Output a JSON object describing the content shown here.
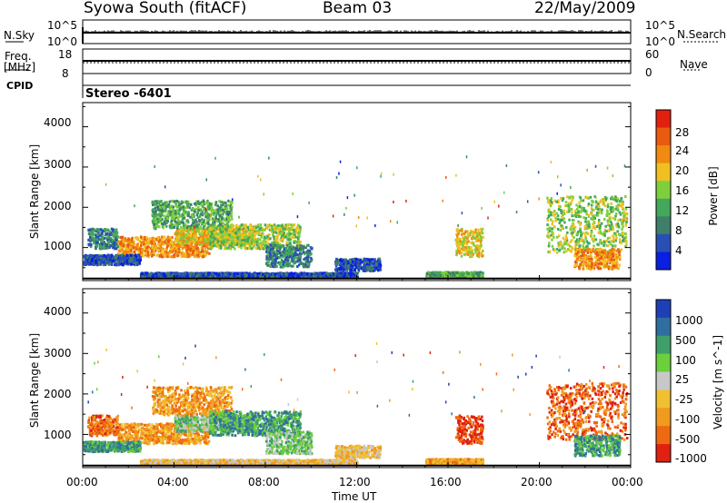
{
  "header": {
    "station": "Syowa South (fitACF)",
    "beam": "Beam 03",
    "date": "22/May/2009"
  },
  "strips": {
    "nsky": {
      "label": "N.Sky",
      "ticks": [
        "10^5",
        "10^0"
      ],
      "right_label": "N.Search",
      "right_ticks": [
        "10^5",
        "10^0"
      ]
    },
    "freq": {
      "label_top": "Freq.",
      "label_bottom": "[MHz]",
      "ticks": [
        "18",
        "8"
      ],
      "right_label": "Nave",
      "right_ticks": [
        "60",
        "0"
      ]
    },
    "cpid": {
      "label": "CPID",
      "value": "Stereo  -6401"
    }
  },
  "time_axis": {
    "label": "Time UT",
    "ticks": [
      "00:00",
      "04:00",
      "08:00",
      "12:00",
      "16:00",
      "20:00",
      "00:00"
    ]
  },
  "chart_data": [
    {
      "type": "heatmap",
      "name": "power",
      "ylabel": "Slant Range [km]",
      "ylim": [
        180,
        4600
      ],
      "xlim_hours": [
        0,
        24
      ],
      "yticks": [
        "1000",
        "2000",
        "3000",
        "4000"
      ],
      "colorbar": {
        "label": "Power [dB]",
        "ticks": [
          "4",
          "8",
          "12",
          "16",
          "20",
          "24",
          "28"
        ],
        "colors": [
          "#0b1fe0",
          "#2a4fb4",
          "#3f7f6a",
          "#43a85a",
          "#7fcf3c",
          "#f0c020",
          "#f08a10",
          "#ea5a10",
          "#e22010"
        ]
      },
      "blobs": [
        {
          "t": [
            1.5,
            5.5
          ],
          "r": [
            800,
            1300
          ],
          "level": 6
        },
        {
          "t": [
            4.0,
            7.5
          ],
          "r": [
            1100,
            1500
          ],
          "level": 5
        },
        {
          "t": [
            3.0,
            6.5
          ],
          "r": [
            1500,
            2200
          ],
          "level": 3
        },
        {
          "t": [
            0.2,
            1.5
          ],
          "r": [
            1000,
            1500
          ],
          "level": 2
        },
        {
          "t": [
            0.0,
            2.5
          ],
          "r": [
            600,
            850
          ],
          "level": 1
        },
        {
          "t": [
            5.5,
            9.5
          ],
          "r": [
            1000,
            1600
          ],
          "level": 4
        },
        {
          "t": [
            8.0,
            10.0
          ],
          "r": [
            550,
            1100
          ],
          "level": 2
        },
        {
          "t": [
            2.5,
            12.0
          ],
          "r": [
            280,
            400
          ],
          "level": 1
        },
        {
          "t": [
            11.0,
            13.0
          ],
          "r": [
            450,
            750
          ],
          "level": 1
        },
        {
          "t": [
            15.0,
            17.5
          ],
          "r": [
            300,
            420
          ],
          "level": 3
        },
        {
          "t": [
            16.3,
            17.5
          ],
          "r": [
            800,
            1500
          ],
          "level": 5
        },
        {
          "t": [
            20.3,
            23.8
          ],
          "r": [
            900,
            2300
          ],
          "level": 4
        },
        {
          "t": [
            21.5,
            23.5
          ],
          "r": [
            500,
            1000
          ],
          "level": 6
        }
      ]
    },
    {
      "type": "heatmap",
      "name": "velocity",
      "ylabel": "Slant Range [km]",
      "ylim": [
        180,
        4600
      ],
      "xlim_hours": [
        0,
        24
      ],
      "yticks": [
        "1000",
        "2000",
        "3000",
        "4000"
      ],
      "colorbar": {
        "label": "Velocity  [m s^-1]",
        "ticks": [
          "1000",
          "500",
          "100",
          "25",
          "-25",
          "-100",
          "-500",
          "-1000"
        ],
        "colors": [
          "#1f3fb8",
          "#2f6fa0",
          "#3f9f6a",
          "#6ccf3c",
          "#c8c8c8",
          "#f0c030",
          "#f09a20",
          "#ee6a10",
          "#e02010"
        ]
      },
      "blobs": [
        {
          "t": [
            1.5,
            5.5
          ],
          "r": [
            800,
            1300
          ],
          "level": 6
        },
        {
          "t": [
            4.0,
            7.5
          ],
          "r": [
            1100,
            1500
          ],
          "level": 3
        },
        {
          "t": [
            3.0,
            6.5
          ],
          "r": [
            1500,
            2200
          ],
          "level": 6
        },
        {
          "t": [
            0.2,
            1.5
          ],
          "r": [
            1000,
            1500
          ],
          "level": 7
        },
        {
          "t": [
            0.0,
            2.5
          ],
          "r": [
            600,
            850
          ],
          "level": 2
        },
        {
          "t": [
            5.5,
            9.5
          ],
          "r": [
            1000,
            1600
          ],
          "level": 2
        },
        {
          "t": [
            8.0,
            10.0
          ],
          "r": [
            550,
            1100
          ],
          "level": 3
        },
        {
          "t": [
            2.5,
            12.0
          ],
          "r": [
            280,
            400
          ],
          "level": 5
        },
        {
          "t": [
            11.0,
            13.0
          ],
          "r": [
            450,
            750
          ],
          "level": 5
        },
        {
          "t": [
            15.0,
            17.5
          ],
          "r": [
            300,
            420
          ],
          "level": 6
        },
        {
          "t": [
            16.3,
            17.5
          ],
          "r": [
            800,
            1500
          ],
          "level": 8
        },
        {
          "t": [
            20.3,
            23.8
          ],
          "r": [
            900,
            2300
          ],
          "level": 7
        },
        {
          "t": [
            21.5,
            23.5
          ],
          "r": [
            500,
            1000
          ],
          "level": 2
        }
      ]
    }
  ]
}
